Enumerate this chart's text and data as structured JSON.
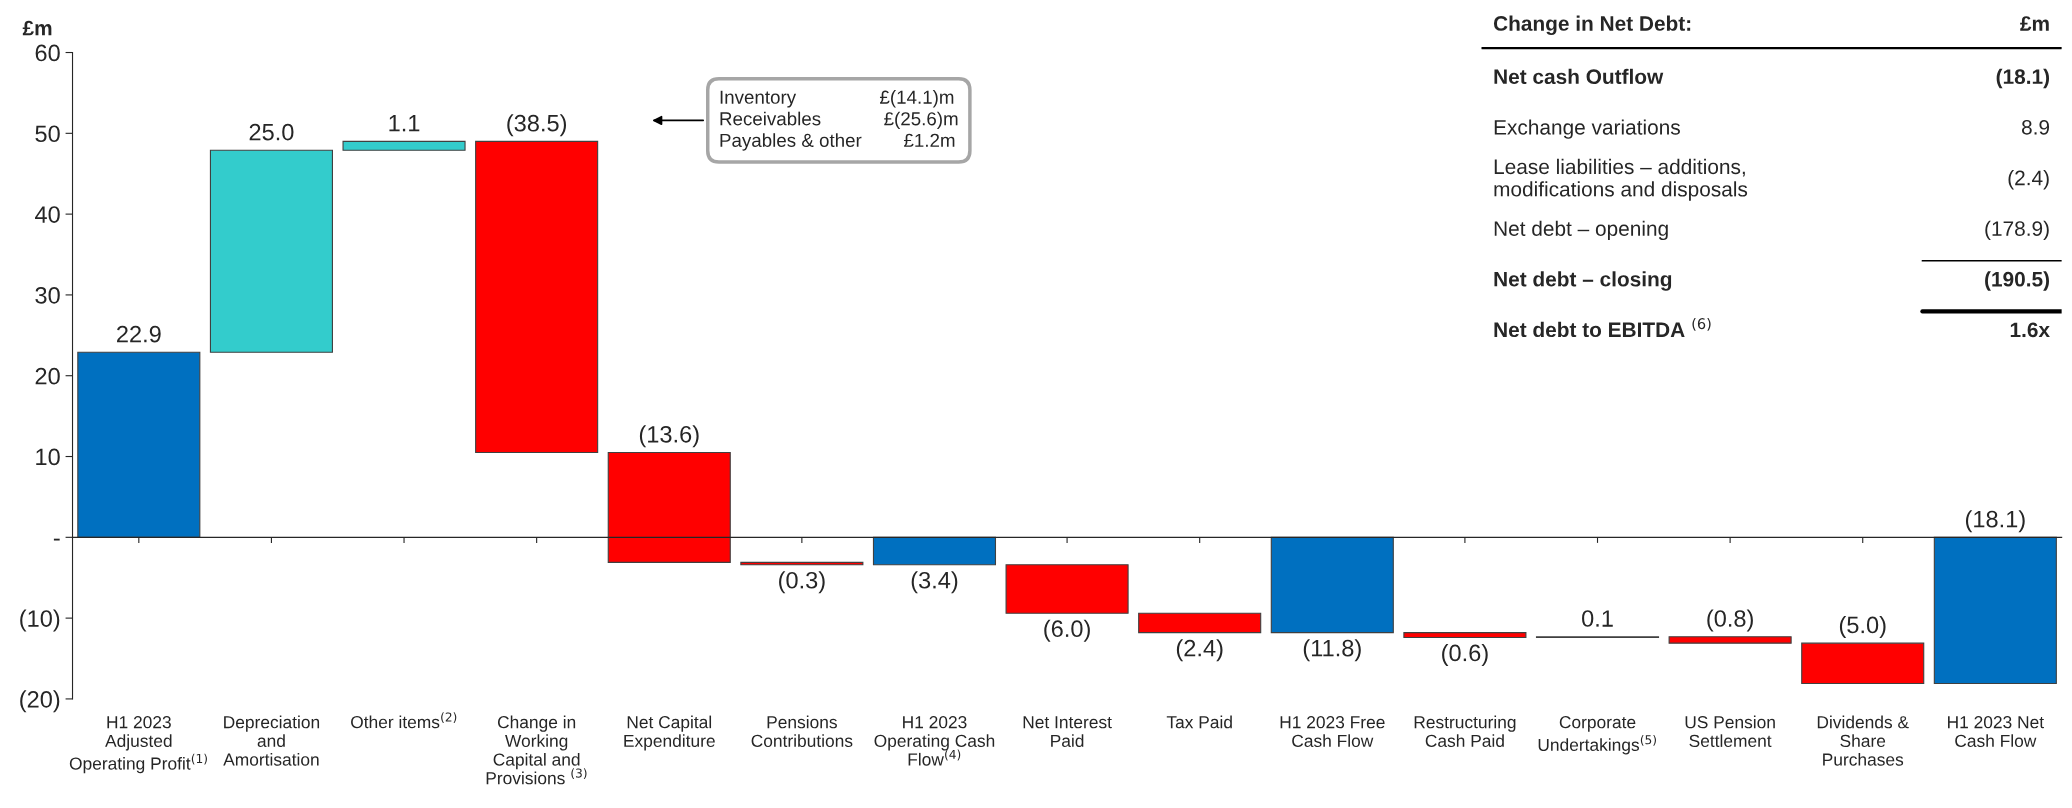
{
  "chart_data": [
    {
      "type": "bar",
      "ylabel": "£m",
      "categories": [
        "H1 2023\nAdjusted\nOperating Profit$^{(1)}$",
        "Depreciation\nand\nAmortisation",
        "Other items$^{(2)}$",
        "Change in\nWorking\nCapital and\nProvisions $^{(3)}$",
        "Net Capital\nExpenditure",
        "Pensions\nContributions",
        "H1 2023\nOperating Cash\nFlow$^{(4)}$",
        "Net Interest\nPaid",
        "Tax Paid",
        "H1 2023 Free\nCash Flow",
        "Restructuring\nCash Paid",
        "Corporate\nUndertakings$^{(5)}$",
        "US Pension\nSettlement",
        "Dividends &\nShare\nPurchases",
        "H1 2023 Net\nCash Flow"
      ],
      "values": [
        22.9,
        25.0,
        1.1,
        -38.5,
        -13.6,
        -0.3,
        -3.4,
        -6.0,
        -2.4,
        -11.8,
        -0.6,
        0.1,
        -0.8,
        -5.0,
        -18.1
      ],
      "base": [
        0,
        22.9,
        47.9,
        49.0,
        10.5,
        -3.1,
        0,
        -3.4,
        -9.4,
        0,
        -11.8,
        -12.4,
        -12.3,
        -13.1,
        0
      ],
      "colors": [
        "#0070c0",
        "#33cccc",
        "#33cccc",
        "#ff0000",
        "#ff0000",
        "#ff0000",
        "#0070c0",
        "#ff0000",
        "#ff0000",
        "#0070c0",
        "#ff0000",
        "#bfbfbf",
        "#ff0000",
        "#ff0000",
        "#0070c0"
      ],
      "value_labels": [
        "22.9",
        "25.0",
        "1.1",
        "(38.5)",
        "(13.6)",
        "(0.3)",
        "(3.4)",
        "(6.0)",
        "(2.4)",
        "(11.8)",
        "(0.6)",
        "0.1",
        "(0.8)",
        "(5.0)",
        "(18.1)"
      ],
      "ylim": [
        -20,
        60
      ],
      "yticks": [
        {
          "value": -20,
          "label": "(20)"
        },
        {
          "value": -10,
          "label": "(10)"
        },
        {
          "value": 0,
          "label": "-"
        },
        10,
        20,
        30,
        40,
        50,
        60
      ],
      "annotations": [
        "Inventory                £(14.1)m\nReceivables            £(25.6)m\nPayables & other        £1.2m"
      ]
    },
    {
      "type": "other",
      "title": "Change in Net Debt:",
      "xlabel": "£m",
      "categories": [
        "Net cash Outflow",
        "Exchange variations",
        "Lease liabilities – additions,\nmodifications and disposals",
        "Net debt – opening",
        "Net debt – closing",
        "Net debt to EBITDA $^{(6)}$"
      ],
      "value_labels": [
        "(18.1)",
        "8.9",
        "(2.4)",
        "(178.9)",
        "(190.5)",
        "1.6x"
      ]
    }
  ]
}
